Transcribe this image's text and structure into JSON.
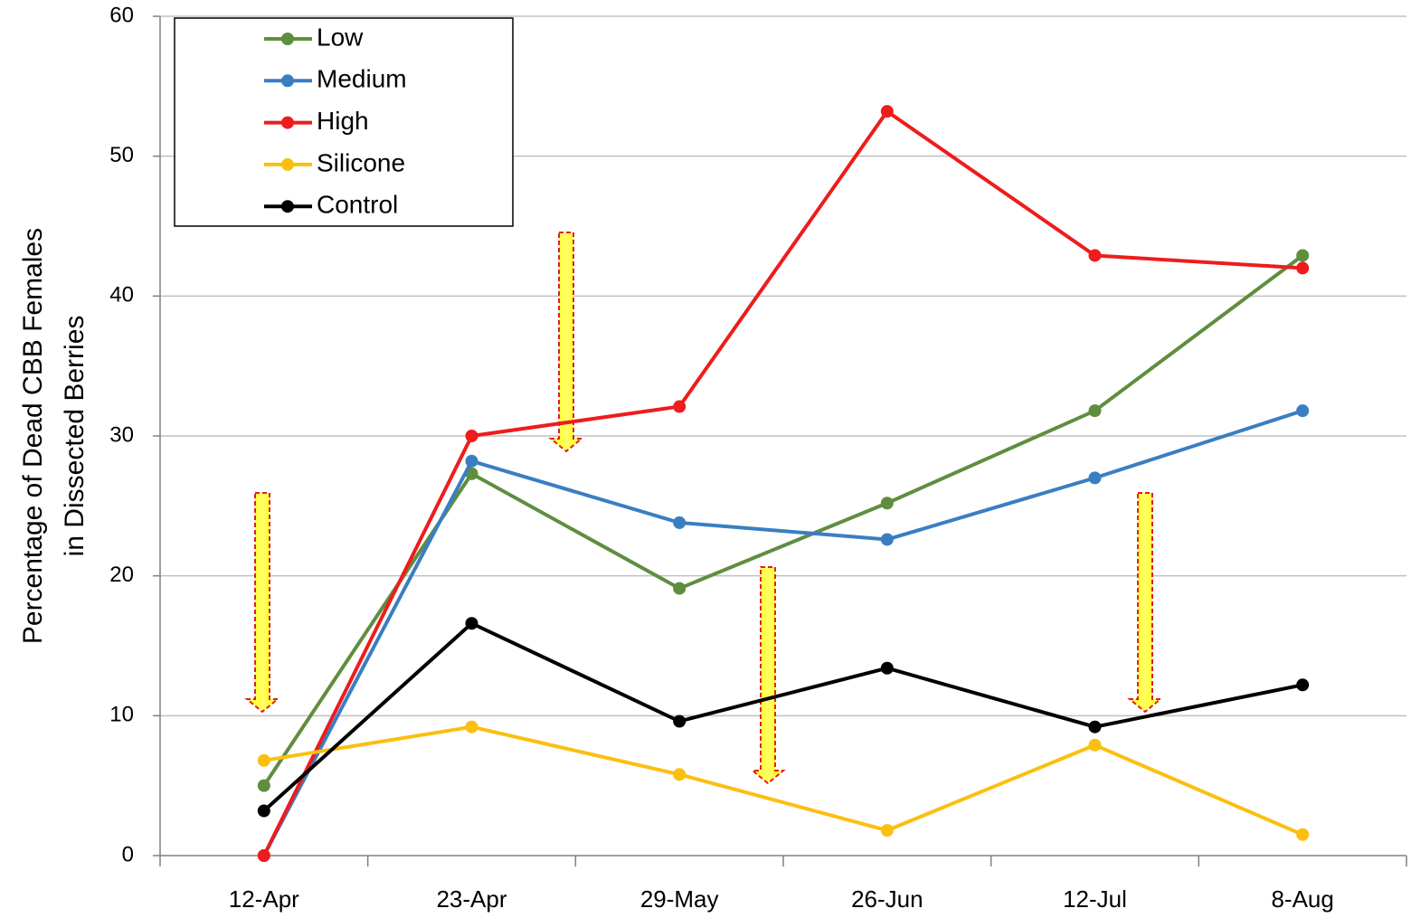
{
  "chart_data": {
    "type": "line",
    "ylabel": [
      "Percentage of Dead CBB Females",
      "in Dissected Berries"
    ],
    "categories": [
      "12-Apr",
      "23-Apr",
      "29-May",
      "26-Jun",
      "12-Jul",
      "8-Aug"
    ],
    "series": [
      {
        "name": "Low",
        "color": "#5e8e3e",
        "values": [
          5.0,
          27.3,
          19.1,
          25.2,
          31.8,
          42.9
        ]
      },
      {
        "name": "Medium",
        "color": "#3a7ec2",
        "values": [
          0,
          28.2,
          23.8,
          22.6,
          27.0,
          31.8
        ]
      },
      {
        "name": "High",
        "color": "#ee1c1c",
        "values": [
          0,
          30.0,
          32.1,
          53.2,
          42.9,
          42.0
        ]
      },
      {
        "name": "Silicone",
        "color": "#fbbf10",
        "values": [
          6.8,
          9.2,
          5.8,
          1.8,
          7.9,
          1.5
        ]
      },
      {
        "name": "Control",
        "color": "#000000",
        "values": [
          3.2,
          16.6,
          9.6,
          13.4,
          9.2,
          12.2
        ]
      }
    ],
    "ylim": [
      0,
      60
    ],
    "yticks": [
      0,
      10,
      20,
      30,
      40,
      50,
      60
    ],
    "grid": true,
    "legend": "upper left"
  }
}
